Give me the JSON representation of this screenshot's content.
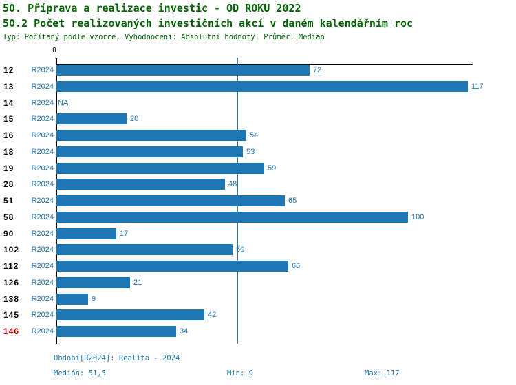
{
  "header": {
    "title_line1": "50. Příprava a realizace investic - OD ROKU 2022",
    "title_line2": "50.2 Počet realizovaných investičních akcí v daném kalendářním roc",
    "subtitle": "Typ: Počítaný podle vzorce, Vyhodnocení: Absolutní hodnoty, Průměr: Medián"
  },
  "axis": {
    "zero_label": "0"
  },
  "chart_data": {
    "type": "bar",
    "orientation": "horizontal",
    "title": "50.2 Počet realizovaných investičních akcí v daném kalendářním roc",
    "categories": [
      "12",
      "13",
      "14",
      "15",
      "16",
      "18",
      "19",
      "28",
      "51",
      "58",
      "90",
      "102",
      "112",
      "126",
      "138",
      "145",
      "146"
    ],
    "series": [
      {
        "name": "R2024",
        "values": [
          72,
          117,
          null,
          20,
          54,
          53,
          59,
          48,
          65,
          100,
          17,
          50,
          66,
          21,
          9,
          42,
          34
        ]
      }
    ],
    "na_text": "NA",
    "xlim": [
      0,
      118
    ],
    "median": 51.5,
    "min": 9,
    "max": 117,
    "highlighted_category": "146",
    "grid": false,
    "legend_position": "none"
  },
  "footer": {
    "period": "Období[R2024]: Realita - 2024",
    "median": "Medián: 51,5",
    "min": "Min: 9",
    "max": "Max: 117"
  },
  "colors": {
    "background": "#ffffff",
    "bar_blue": "#1f77b4",
    "blue_text": "#1f77b4",
    "title_green": "#006400",
    "text_black": "#000000",
    "highlight_red": "#d40000",
    "axis_black": "#000000"
  }
}
